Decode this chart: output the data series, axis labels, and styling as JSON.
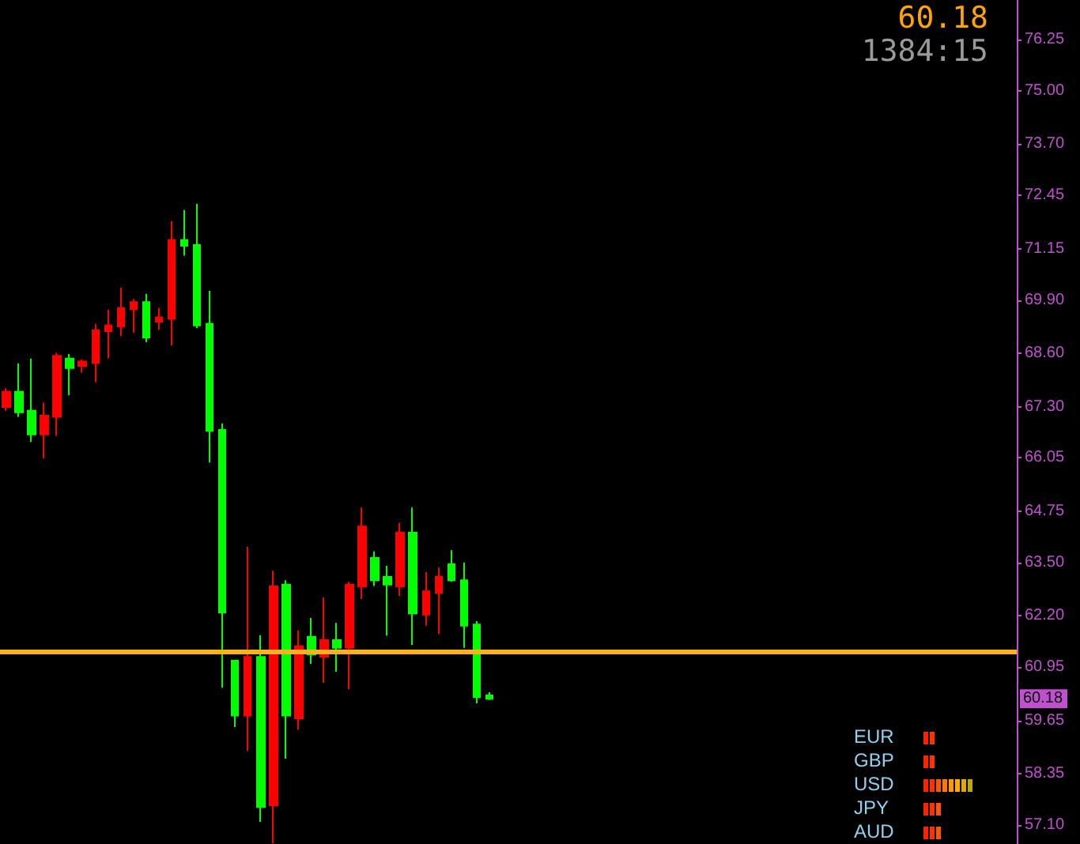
{
  "chart_data": {
    "type": "candlestick",
    "categories": [
      null,
      null,
      null,
      null,
      null,
      null,
      null,
      null,
      null,
      null,
      null,
      null,
      null,
      null,
      null,
      null,
      null,
      null,
      null,
      null,
      null,
      null,
      null,
      null,
      null,
      null,
      null,
      null,
      null,
      null,
      null,
      null,
      null,
      null,
      null,
      null,
      null,
      null,
      null,
      null,
      null,
      null,
      null,
      null,
      null,
      null,
      null,
      null,
      null,
      null,
      null,
      null,
      null,
      null,
      null,
      null,
      null,
      null,
      null,
      null,
      null,
      null,
      null,
      null,
      null,
      null,
      null,
      null,
      null,
      null,
      null,
      null,
      null,
      null,
      null,
      null,
      null,
      null,
      null,
      null
    ],
    "ohlc": [
      [
        67.29,
        67.75,
        67.2,
        67.66
      ],
      [
        67.66,
        68.35,
        67.05,
        67.16
      ],
      [
        67.2,
        68.47,
        66.44,
        66.62
      ],
      [
        66.62,
        67.39,
        66.04,
        67.08
      ],
      [
        67.05,
        68.61,
        66.59,
        68.54
      ],
      [
        68.47,
        68.58,
        67.58,
        68.24
      ],
      [
        68.29,
        68.45,
        68.13,
        68.4
      ],
      [
        68.36,
        69.32,
        67.9,
        69.16
      ],
      [
        69.14,
        69.66,
        68.48,
        69.28
      ],
      [
        69.25,
        70.2,
        69.02,
        69.7
      ],
      [
        69.67,
        69.92,
        69.1,
        69.85
      ],
      [
        69.85,
        70.05,
        68.87,
        68.98
      ],
      [
        69.37,
        69.7,
        69.17,
        69.47
      ],
      [
        69.44,
        71.82,
        68.79,
        71.36
      ],
      [
        71.36,
        72.09,
        70.98,
        71.22
      ],
      [
        71.24,
        72.24,
        69.21,
        69.28
      ],
      [
        69.32,
        70.12,
        65.94,
        66.71
      ],
      [
        66.73,
        66.89,
        60.45,
        62.28
      ],
      [
        61.11,
        61.11,
        59.49,
        59.77
      ],
      [
        59.77,
        63.88,
        58.91,
        61.2
      ],
      [
        61.2,
        61.73,
        57.18,
        57.54
      ],
      [
        57.58,
        63.3,
        56.66,
        62.92
      ],
      [
        62.96,
        63.07,
        58.72,
        59.77
      ],
      [
        59.7,
        61.84,
        59.43,
        61.46
      ],
      [
        61.69,
        62.15,
        61.03,
        61.26
      ],
      [
        61.2,
        62.65,
        60.57,
        61.61
      ],
      [
        61.61,
        62.03,
        60.84,
        61.42
      ],
      [
        61.42,
        63.03,
        60.41,
        62.96
      ],
      [
        62.92,
        64.84,
        62.61,
        64.38
      ],
      [
        63.61,
        63.77,
        62.93,
        63.07
      ],
      [
        63.15,
        63.42,
        61.72,
        62.96
      ],
      [
        62.92,
        64.46,
        62.69,
        64.23
      ],
      [
        64.23,
        64.84,
        61.49,
        62.26
      ],
      [
        62.23,
        63.27,
        61.96,
        62.8
      ],
      [
        62.76,
        63.38,
        61.76,
        63.15
      ],
      [
        63.46,
        63.8,
        63.03,
        63.07
      ],
      [
        63.07,
        63.5,
        61.42,
        61.96
      ],
      [
        61.99,
        62.07,
        60.07,
        60.22
      ],
      [
        60.26,
        60.34,
        60.15,
        60.18
      ],
      null,
      null,
      null,
      null,
      null,
      null,
      null,
      null,
      null,
      null,
      null,
      null,
      null,
      null,
      null,
      null,
      null,
      null,
      null,
      null,
      null,
      null,
      null,
      null,
      null,
      null,
      null,
      null,
      null,
      null,
      null,
      null,
      null,
      null,
      null,
      null,
      null,
      null,
      null,
      null,
      null
    ],
    "colors": [
      "#ff0000",
      "#00ff00",
      "#00ff00",
      "#ff0000",
      "#ff0000",
      "#00ff00",
      "#ff0000",
      "#ff0000",
      "#ff0000",
      "#ff0000",
      "#ff0000",
      "#00ff00",
      "#ff0000",
      "#ff0000",
      "#00ff00",
      "#00ff00",
      "#00ff00",
      "#00ff00",
      "#00ff00",
      "#ff0000",
      "#00ff00",
      "#ff0000",
      "#00ff00",
      "#ff0000",
      "#00ff00",
      "#ff0000",
      "#00ff00",
      "#ff0000",
      "#ff0000",
      "#00ff00",
      "#00ff00",
      "#ff0000",
      "#00ff00",
      "#ff0000",
      "#ff0000",
      "#00ff00",
      "#00ff00",
      "#00ff00",
      "#00ff00",
      null,
      null,
      null,
      null,
      null,
      null,
      null,
      null,
      null,
      null,
      null,
      null,
      null,
      null,
      null,
      null,
      null,
      null,
      null,
      null,
      null,
      null,
      null,
      null,
      null,
      null,
      null,
      null,
      null,
      null,
      null,
      null,
      null,
      null,
      null,
      null,
      null,
      null,
      null,
      null,
      null
    ],
    "ylim": [
      56.64,
      77.21
    ],
    "yticks": [
      76.25,
      {
        "value": 75,
        "label": "75.00"
      },
      {
        "value": 73.7,
        "label": "73.70"
      },
      72.45,
      71.15,
      {
        "value": 69.9,
        "label": "69.90"
      },
      {
        "value": 68.6,
        "label": "68.60"
      },
      {
        "value": 67.3,
        "label": "67.30"
      },
      66.05,
      64.75,
      {
        "value": 63.5,
        "label": "63.50"
      },
      {
        "value": 62.2,
        "label": "62.20"
      },
      60.95,
      59.65,
      58.35,
      {
        "value": 57.1,
        "label": "57.10"
      }
    ],
    "tick_labels": "y",
    "grid": false,
    "ref_lines": [
      {
        "axis": "y",
        "value": 61.34,
        "label": null,
        "color": "#ffb020"
      }
    ],
    "annotations": [
      {
        "text": "60.18",
        "y": 60.18
      },
      "60.18",
      "1384:15",
      "EUR",
      "GBP",
      "USD",
      "JPY",
      "AUD"
    ]
  }
}
